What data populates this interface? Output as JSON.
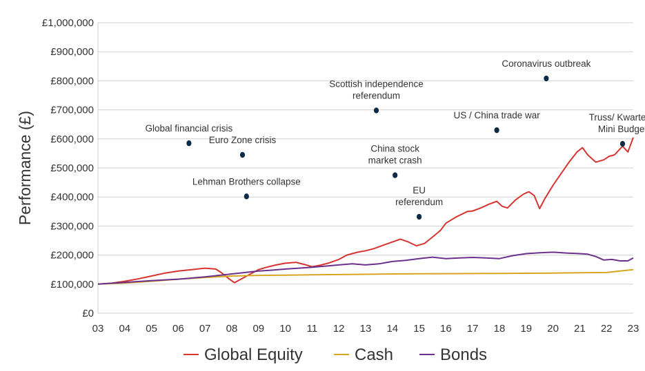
{
  "chart_data": {
    "type": "line",
    "title": "",
    "xlabel": "",
    "ylabel": "Performance (£)",
    "xlim": [
      3,
      23
    ],
    "ylim": [
      0,
      1000000
    ],
    "x_ticks": [
      3,
      4,
      5,
      6,
      7,
      8,
      9,
      10,
      11,
      12,
      13,
      14,
      15,
      16,
      17,
      18,
      19,
      20,
      21,
      22,
      23
    ],
    "x_tick_labels": [
      "03",
      "04",
      "05",
      "06",
      "07",
      "08",
      "09",
      "10",
      "11",
      "12",
      "13",
      "14",
      "15",
      "16",
      "17",
      "18",
      "19",
      "20",
      "21",
      "22",
      "23"
    ],
    "y_ticks": [
      0,
      100000,
      200000,
      300000,
      400000,
      500000,
      600000,
      700000,
      800000,
      900000,
      1000000
    ],
    "y_tick_labels": [
      "£0",
      "£100,000",
      "£200,000",
      "£300,000",
      "£400,000",
      "£500,000",
      "£600,000",
      "£700,000",
      "£800,000",
      "£900,000",
      "£1,000,000"
    ],
    "grid": "horizontal",
    "legend": "bottom",
    "series": [
      {
        "name": "Global Equity",
        "color": "#d6332f",
        "points": [
          [
            3.0,
            100000
          ],
          [
            3.5,
            103000
          ],
          [
            4.0,
            110000
          ],
          [
            4.5,
            118000
          ],
          [
            5.0,
            128000
          ],
          [
            5.5,
            138000
          ],
          [
            6.0,
            145000
          ],
          [
            6.5,
            150000
          ],
          [
            7.0,
            155000
          ],
          [
            7.4,
            152000
          ],
          [
            7.6,
            140000
          ],
          [
            7.9,
            118000
          ],
          [
            8.1,
            105000
          ],
          [
            8.3,
            115000
          ],
          [
            8.5,
            125000
          ],
          [
            8.8,
            140000
          ],
          [
            9.0,
            150000
          ],
          [
            9.3,
            158000
          ],
          [
            9.6,
            165000
          ],
          [
            10.0,
            172000
          ],
          [
            10.4,
            175000
          ],
          [
            10.7,
            168000
          ],
          [
            11.0,
            160000
          ],
          [
            11.3,
            165000
          ],
          [
            11.6,
            172000
          ],
          [
            12.0,
            185000
          ],
          [
            12.3,
            200000
          ],
          [
            12.7,
            210000
          ],
          [
            13.0,
            215000
          ],
          [
            13.3,
            222000
          ],
          [
            13.6,
            232000
          ],
          [
            14.0,
            245000
          ],
          [
            14.3,
            255000
          ],
          [
            14.6,
            245000
          ],
          [
            14.9,
            232000
          ],
          [
            15.2,
            240000
          ],
          [
            15.5,
            262000
          ],
          [
            15.8,
            285000
          ],
          [
            16.0,
            310000
          ],
          [
            16.4,
            332000
          ],
          [
            16.8,
            350000
          ],
          [
            17.0,
            352000
          ],
          [
            17.3,
            362000
          ],
          [
            17.6,
            375000
          ],
          [
            17.9,
            385000
          ],
          [
            18.1,
            368000
          ],
          [
            18.3,
            362000
          ],
          [
            18.6,
            390000
          ],
          [
            18.9,
            410000
          ],
          [
            19.1,
            418000
          ],
          [
            19.3,
            405000
          ],
          [
            19.5,
            360000
          ],
          [
            19.7,
            395000
          ],
          [
            20.0,
            440000
          ],
          [
            20.3,
            480000
          ],
          [
            20.6,
            520000
          ],
          [
            20.9,
            555000
          ],
          [
            21.1,
            570000
          ],
          [
            21.3,
            545000
          ],
          [
            21.6,
            520000
          ],
          [
            21.9,
            528000
          ],
          [
            22.1,
            540000
          ],
          [
            22.3,
            545000
          ],
          [
            22.6,
            575000
          ],
          [
            22.8,
            555000
          ],
          [
            23.0,
            605000
          ]
        ]
      },
      {
        "name": "Cash",
        "color": "#d8a520",
        "points": [
          [
            3.0,
            100000
          ],
          [
            4.0,
            104000
          ],
          [
            5.0,
            110000
          ],
          [
            6.0,
            117000
          ],
          [
            7.0,
            123000
          ],
          [
            8.0,
            128000
          ],
          [
            9.0,
            130000
          ],
          [
            10.0,
            131000
          ],
          [
            11.0,
            132000
          ],
          [
            12.0,
            133000
          ],
          [
            13.0,
            134000
          ],
          [
            14.0,
            135000
          ],
          [
            15.0,
            135500
          ],
          [
            16.0,
            136000
          ],
          [
            17.0,
            136500
          ],
          [
            18.0,
            137000
          ],
          [
            19.0,
            137500
          ],
          [
            20.0,
            138000
          ],
          [
            21.0,
            139000
          ],
          [
            22.0,
            140000
          ],
          [
            22.5,
            145000
          ],
          [
            23.0,
            150000
          ]
        ]
      },
      {
        "name": "Bonds",
        "color": "#6b2f8c",
        "points": [
          [
            3.0,
            100000
          ],
          [
            4.0,
            106000
          ],
          [
            5.0,
            112000
          ],
          [
            6.0,
            117000
          ],
          [
            7.0,
            125000
          ],
          [
            7.5,
            130000
          ],
          [
            8.0,
            135000
          ],
          [
            8.5,
            140000
          ],
          [
            9.0,
            145000
          ],
          [
            9.5,
            148000
          ],
          [
            10.0,
            152000
          ],
          [
            10.5,
            155000
          ],
          [
            11.0,
            158000
          ],
          [
            11.5,
            162000
          ],
          [
            12.0,
            166000
          ],
          [
            12.5,
            170000
          ],
          [
            13.0,
            166000
          ],
          [
            13.5,
            170000
          ],
          [
            14.0,
            178000
          ],
          [
            14.5,
            182000
          ],
          [
            15.0,
            188000
          ],
          [
            15.5,
            193000
          ],
          [
            16.0,
            188000
          ],
          [
            16.5,
            190000
          ],
          [
            17.0,
            192000
          ],
          [
            17.5,
            190000
          ],
          [
            18.0,
            188000
          ],
          [
            18.5,
            198000
          ],
          [
            19.0,
            205000
          ],
          [
            19.5,
            208000
          ],
          [
            20.0,
            210000
          ],
          [
            20.5,
            207000
          ],
          [
            21.0,
            205000
          ],
          [
            21.3,
            203000
          ],
          [
            21.6,
            195000
          ],
          [
            21.9,
            183000
          ],
          [
            22.2,
            185000
          ],
          [
            22.5,
            180000
          ],
          [
            22.8,
            180000
          ],
          [
            23.0,
            190000
          ]
        ]
      }
    ],
    "annotations": [
      {
        "lines": [
          "Global financial crisis"
        ],
        "x": 6.4,
        "y": 585000
      },
      {
        "lines": [
          "Euro Zone crisis"
        ],
        "x": 8.4,
        "y": 545000
      },
      {
        "lines": [
          "Lehman Brothers collapse"
        ],
        "x": 8.55,
        "y": 402000
      },
      {
        "lines": [
          "Scottish  independence",
          "referendum"
        ],
        "x": 13.4,
        "y": 698000
      },
      {
        "lines": [
          "China stock",
          "market crash"
        ],
        "x": 14.1,
        "y": 475000
      },
      {
        "lines": [
          "EU",
          "referendum"
        ],
        "x": 15.0,
        "y": 332000
      },
      {
        "lines": [
          "US / China trade war"
        ],
        "x": 17.9,
        "y": 630000
      },
      {
        "lines": [
          "Coronavirus outbreak"
        ],
        "x": 19.75,
        "y": 808000
      },
      {
        "lines": [
          "Truss/ Kwarteng",
          "Mini Budget"
        ],
        "x": 22.6,
        "y": 583000
      }
    ]
  }
}
